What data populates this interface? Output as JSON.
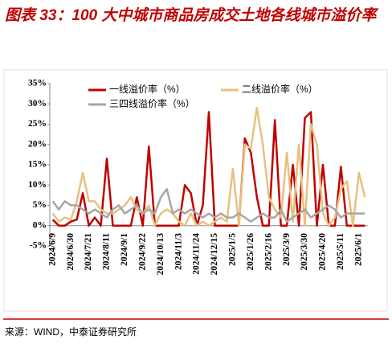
{
  "chart_data": {
    "type": "line",
    "title": "图表 33：100 大中城市商品房成交土地各线城市溢价率",
    "categories": [
      "2024/6/9",
      null,
      null,
      "2024/6/30",
      null,
      null,
      "2024/7/21",
      null,
      null,
      "2024/8/11",
      null,
      null,
      "2024/9/1",
      null,
      null,
      "2024/9/22",
      null,
      null,
      "2024/10/13",
      null,
      null,
      "2024/11/3",
      null,
      null,
      "2024/11/24",
      null,
      null,
      "2024/12/15",
      null,
      null,
      "2025/1/5",
      null,
      null,
      "2025/1/26",
      null,
      null,
      "2025/2/16",
      null,
      null,
      "2025/3/9",
      null,
      null,
      "2025/3/30",
      null,
      null,
      "2025/4/20",
      null,
      null,
      "2025/5/11",
      null,
      null,
      "2025/6/1",
      null
    ],
    "series": [
      {
        "name": "一线溢价率（%）",
        "color": "#c00000",
        "values": [
          1.5,
          0,
          0,
          1,
          1.5,
          8,
          0,
          2,
          0,
          16.5,
          0,
          0,
          0,
          0,
          7,
          0,
          19.5,
          0,
          0,
          0,
          0,
          0,
          10,
          8,
          0,
          5,
          28,
          0,
          0,
          0,
          0,
          0,
          21.5,
          18,
          7,
          0,
          0,
          26,
          0,
          0,
          15,
          0,
          26.5,
          28,
          0,
          15,
          0,
          0,
          14.5,
          0,
          0,
          0,
          0
        ]
      },
      {
        "name": "二线溢价率（%）",
        "color": "#e6c27f",
        "values": [
          3,
          1,
          2,
          1.5,
          6,
          13,
          6,
          6,
          4,
          3,
          3,
          4,
          5,
          7,
          4,
          3,
          5,
          0,
          3,
          4,
          3,
          1,
          0,
          3,
          0,
          1,
          0,
          1,
          2,
          1,
          14,
          0,
          20,
          19,
          29,
          20,
          7,
          4,
          2,
          18,
          1,
          20,
          0,
          25,
          20,
          3,
          0,
          2,
          9,
          11,
          0,
          13,
          7
        ]
      },
      {
        "name": "三四线溢价率（%）",
        "color": "#a6a6a6",
        "values": [
          6,
          4,
          6,
          5,
          5,
          4,
          3,
          4,
          3,
          2,
          4,
          5,
          3,
          4,
          5,
          3,
          4,
          3,
          7,
          9,
          3,
          4,
          3,
          4,
          3,
          2,
          3,
          2,
          3,
          2,
          2,
          3,
          2,
          1,
          2,
          3,
          2,
          2,
          4,
          1,
          2,
          3,
          4,
          2,
          3,
          4,
          5,
          4,
          2,
          3,
          3,
          3,
          3
        ]
      }
    ],
    "ylim": [
      -5,
      35
    ],
    "yticks": [
      {
        "value": -5,
        "label": "-5%"
      },
      {
        "value": 0,
        "label": "0%"
      },
      {
        "value": 5,
        "label": "5%"
      },
      {
        "value": 10,
        "label": "10%"
      },
      {
        "value": 15,
        "label": "15%"
      },
      {
        "value": 20,
        "label": "20%"
      },
      {
        "value": 25,
        "label": "25%"
      },
      {
        "value": 30,
        "label": "30%"
      },
      {
        "value": 35,
        "label": "35%"
      }
    ],
    "grid": false
  },
  "source": "来源：WIND，中泰证券研究所"
}
